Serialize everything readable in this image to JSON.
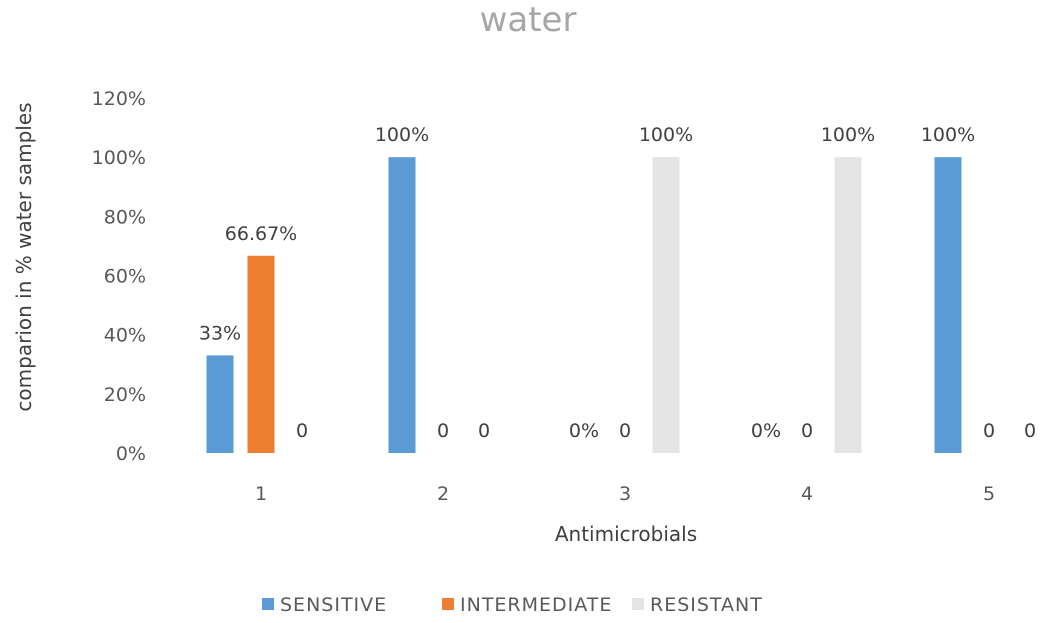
{
  "chart_data": {
    "type": "bar",
    "title": "water",
    "xlabel": "Antimicrobials",
    "ylabel": "comparion in % water samples",
    "categories": [
      "1",
      "2",
      "3",
      "4",
      "5"
    ],
    "ylim": [
      0,
      1.2
    ],
    "yticks": [
      "0%",
      "20%",
      "40%",
      "60%",
      "80%",
      "100%",
      "120%"
    ],
    "grid": false,
    "legend_position": "bottom",
    "series": [
      {
        "name": "SENSITIVE",
        "color": "#5b9bd5",
        "values": [
          0.33,
          1.0,
          0,
          0,
          1.0
        ],
        "labels": [
          "33%",
          "100%",
          "0%",
          "0%",
          "100%"
        ]
      },
      {
        "name": "INTERMEDIATE",
        "color": "#ed7d31",
        "values": [
          0.6667,
          0,
          0,
          0,
          0
        ],
        "labels": [
          "66.67%",
          "0",
          "0",
          "0",
          "0"
        ]
      },
      {
        "name": "RESISTANT",
        "color": "#e4e4e4",
        "values": [
          0,
          0,
          1.0,
          1.0,
          0
        ],
        "labels": [
          "0",
          "0",
          "100%",
          "100%",
          "0"
        ]
      }
    ]
  }
}
